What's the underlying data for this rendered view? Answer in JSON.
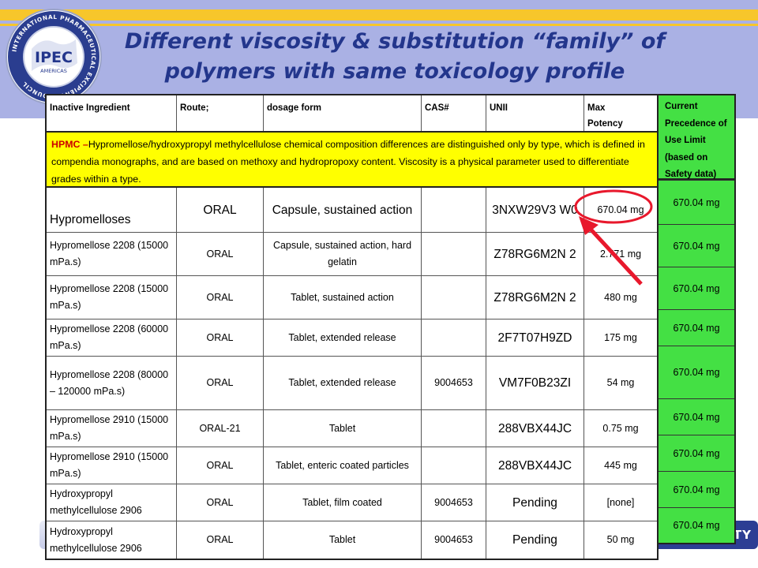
{
  "title": {
    "line1": "Different viscosity & substitution “family” of",
    "line2": "polymers with same toxicology profile"
  },
  "logo": {
    "center": "IPEC",
    "sub": "AMERICAS",
    "ring": "INTERNATIONAL PHARMACEUTICAL EXCIPIENTS COUNCIL"
  },
  "footer_text": "ITY",
  "colors": {
    "title": "#23368c",
    "note_bg": "#ffff00",
    "precedence_bg": "#44e044",
    "arrow": "#e8182c",
    "banner": "#aab1e4"
  },
  "table": {
    "headers": {
      "ingredient": "Inactive Ingredient",
      "route": "Route;",
      "dosage": "dosage form",
      "cas": "CAS#",
      "unii": "UNII",
      "potency_1": "Max",
      "potency_2": "Potency"
    },
    "note": {
      "lead": "HPMC –",
      "text": "Hypromellose/hydroxypropyl methylcellulose chemical composition differences are distinguished only by type, which is defined in compendia monographs, and are based on methoxy and hydropropoxy content.  Viscosity is a physical parameter used to differentiate grades within a type."
    },
    "rows": [
      {
        "ingredient": "Hypromelloses",
        "route": "ORAL",
        "dosage": "Capsule, sustained action",
        "cas": "",
        "unii": "3NXW29V3 W0",
        "potency": "670.04 mg"
      },
      {
        "ingredient": "Hypromellose 2208 (15000 mPa.s)",
        "route": "ORAL",
        "dosage": "Capsule, sustained action, hard gelatin",
        "cas": "",
        "unii": "Z78RG6M2N 2",
        "potency": "2.771 mg"
      },
      {
        "ingredient": "Hypromellose 2208 (15000 mPa.s)",
        "route": "ORAL",
        "dosage": "Tablet, sustained action",
        "cas": "",
        "unii": "Z78RG6M2N 2",
        "potency": "480 mg"
      },
      {
        "ingredient": "Hypromellose 2208 (60000 mPa.s)",
        "route": "ORAL",
        "dosage": "Tablet, extended release",
        "cas": "",
        "unii": "2F7T07H9ZD",
        "potency": "175 mg"
      },
      {
        "ingredient": "Hypromellose 2208 (80000 – 120000 mPa.s)",
        "route": "ORAL",
        "dosage": "Tablet, extended release",
        "cas": "9004653",
        "unii": "VM7F0B23ZI",
        "potency": "54 mg"
      },
      {
        "ingredient": "Hypromellose 2910 (15000 mPa.s)",
        "route": "ORAL-21",
        "dosage": "Tablet",
        "cas": "",
        "unii": "288VBX44JC",
        "potency": "0.75 mg"
      },
      {
        "ingredient": "Hypromellose 2910 (15000 mPa.s)",
        "route": "ORAL",
        "dosage": "Tablet, enteric coated particles",
        "cas": "",
        "unii": "288VBX44JC",
        "potency": "445 mg"
      },
      {
        "ingredient": "Hydroxypropyl methylcellulose 2906",
        "route": "ORAL",
        "dosage": "Tablet, film coated",
        "cas": "9004653",
        "unii": "Pending",
        "potency": "[none]"
      },
      {
        "ingredient": "Hydroxypropyl methylcellulose 2906",
        "route": "ORAL",
        "dosage": "Tablet",
        "cas": "9004653",
        "unii": "Pending",
        "potency": "50 mg"
      }
    ]
  },
  "precedence": {
    "header": "Current Precedence of Use Limit (based on Safety data)",
    "values": [
      "670.04 mg",
      "670.04 mg",
      "670.04 mg",
      "670.04 mg",
      "670.04 mg",
      "670.04 mg",
      "670.04 mg",
      "670.04 mg",
      "670.04 mg"
    ]
  }
}
